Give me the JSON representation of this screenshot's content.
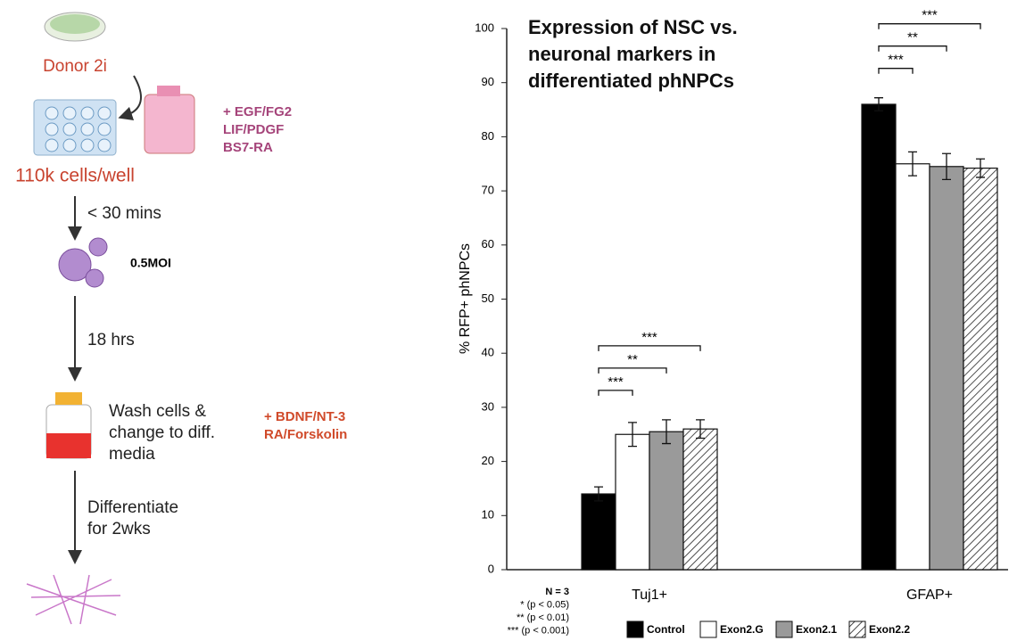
{
  "workflow": {
    "donor": "Donor 2i",
    "media1": [
      "+ EGF/FG2",
      "LIF/PDGF",
      "BS7-RA"
    ],
    "cells": "110k cells/well",
    "step1": "< 30 mins",
    "moi": "0.5MOI",
    "step2": "18 hrs",
    "wash": [
      "Wash cells &",
      "change to diff.",
      "media"
    ],
    "media2": [
      "+ BDNF/NT-3",
      "RA/Forskolin"
    ],
    "differentiate": [
      "Differentiate",
      "for 2wks"
    ]
  },
  "chart_data": {
    "type": "bar",
    "title": "Expression of NSC vs. neuronal markers in differentiated phNPCs",
    "ylabel": "% RFP+ phNPCs",
    "categories": [
      "Tuj1+",
      "GFAP+"
    ],
    "series": [
      {
        "name": "Control",
        "color": "#000000",
        "values": [
          14,
          86
        ],
        "errors": [
          1.3,
          1.2
        ]
      },
      {
        "name": "Exon2.G",
        "color": "#ffffff",
        "values": [
          25,
          75
        ],
        "errors": [
          2.2,
          2.2
        ]
      },
      {
        "name": "Exon2.1",
        "color": "#9a9a9a",
        "values": [
          25.5,
          74.5
        ],
        "errors": [
          2.2,
          2.4
        ]
      },
      {
        "name": "Exon2.2",
        "color": "hatched",
        "values": [
          26,
          74.2
        ],
        "errors": [
          1.7,
          1.7
        ]
      }
    ],
    "annotations": [
      [
        "***",
        "**",
        "***"
      ],
      [
        "***",
        "**",
        "***"
      ]
    ],
    "notes": [
      "N = 3",
      "* (p < 0.05)",
      "** (p < 0.01)",
      "*** (p < 0.001)"
    ],
    "ylim": [
      0,
      100
    ],
    "yticks": [
      0,
      10,
      20,
      30,
      40,
      50,
      60,
      70,
      80,
      90,
      100
    ],
    "grid": false
  }
}
